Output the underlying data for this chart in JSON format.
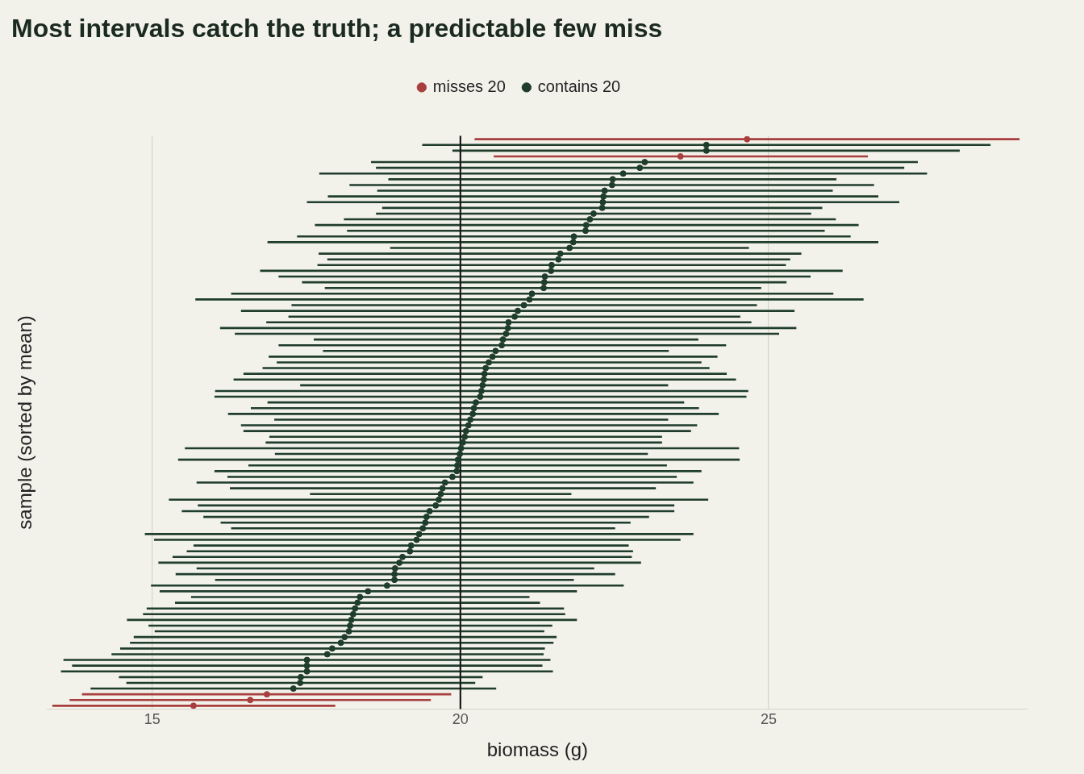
{
  "chart_data": {
    "type": "scatter",
    "orientation": "horizontal",
    "title": "Most intervals catch the truth; a predictable few miss",
    "xlabel": "biomass (g)",
    "ylabel": "sample (sorted by mean)",
    "categories": [
      null,
      null,
      null,
      null,
      null,
      null,
      null,
      null,
      null,
      null,
      null,
      null,
      null,
      null,
      null,
      null,
      null,
      null,
      null,
      null,
      null,
      null,
      null,
      null,
      null,
      null,
      null,
      null,
      null,
      null,
      null,
      null,
      null,
      null,
      null,
      null,
      null,
      null,
      null,
      null,
      null,
      null,
      null,
      null,
      null,
      null,
      null,
      null,
      null,
      null,
      null,
      null,
      null,
      null,
      null,
      null,
      null,
      null,
      null,
      null,
      null,
      null,
      null,
      null,
      null,
      null,
      null,
      null,
      null,
      null,
      null,
      null,
      null,
      null,
      null,
      null,
      null,
      null,
      null,
      null,
      null,
      null,
      null,
      null,
      null,
      null,
      null,
      null,
      null,
      null,
      null,
      null,
      null,
      null,
      null,
      null,
      null,
      null,
      null,
      null
    ],
    "xlim": [
      13.3,
      29.2
    ],
    "xticks": [
      15,
      20,
      25
    ],
    "grid": "x",
    "legend": "top",
    "tick_labels": "x",
    "marker": "circle",
    "ref_lines": [
      {
        "axis": "x",
        "value": 20,
        "color": "#1a1a1a"
      }
    ],
    "series": [
      {
        "name": "misses 20",
        "color": "#a83e3e",
        "values": [
          24.65,
          null,
          null,
          23.57,
          null,
          null,
          null,
          null,
          null,
          null,
          null,
          null,
          null,
          null,
          null,
          null,
          null,
          null,
          null,
          null,
          null,
          null,
          null,
          null,
          null,
          null,
          null,
          null,
          null,
          null,
          null,
          null,
          null,
          null,
          null,
          null,
          null,
          null,
          null,
          null,
          null,
          null,
          null,
          null,
          null,
          null,
          null,
          null,
          null,
          null,
          null,
          null,
          null,
          null,
          null,
          null,
          null,
          null,
          null,
          null,
          null,
          null,
          null,
          null,
          null,
          null,
          null,
          null,
          null,
          null,
          null,
          null,
          null,
          null,
          null,
          null,
          null,
          null,
          null,
          null,
          null,
          null,
          null,
          null,
          null,
          null,
          null,
          null,
          null,
          null,
          null,
          null,
          null,
          null,
          null,
          null,
          null,
          16.86,
          16.59,
          15.67
        ],
        "errors": [
          [
            20.23,
            29.07
          ],
          null,
          null,
          [
            20.54,
            26.61
          ],
          null,
          null,
          null,
          null,
          null,
          null,
          null,
          null,
          null,
          null,
          null,
          null,
          null,
          null,
          null,
          null,
          null,
          null,
          null,
          null,
          null,
          null,
          null,
          null,
          null,
          null,
          null,
          null,
          null,
          null,
          null,
          null,
          null,
          null,
          null,
          null,
          null,
          null,
          null,
          null,
          null,
          null,
          null,
          null,
          null,
          null,
          null,
          null,
          null,
          null,
          null,
          null,
          null,
          null,
          null,
          null,
          null,
          null,
          null,
          null,
          null,
          null,
          null,
          null,
          null,
          null,
          null,
          null,
          null,
          null,
          null,
          null,
          null,
          null,
          null,
          null,
          null,
          null,
          null,
          null,
          null,
          null,
          null,
          null,
          null,
          null,
          null,
          null,
          null,
          null,
          null,
          null,
          null,
          [
            13.86,
            19.85
          ],
          [
            13.66,
            19.52
          ],
          [
            13.38,
            17.97
          ]
        ]
      },
      {
        "name": "contains 20",
        "color": "#1f3d2b",
        "values": [
          null,
          23.99,
          23.99,
          null,
          22.99,
          22.91,
          22.64,
          22.47,
          22.46,
          22.34,
          22.32,
          22.31,
          22.3,
          22.16,
          22.1,
          22.04,
          22.03,
          21.84,
          21.83,
          21.77,
          21.62,
          21.59,
          21.48,
          21.47,
          21.37,
          21.36,
          21.35,
          21.16,
          21.12,
          21.03,
          20.93,
          20.88,
          20.78,
          20.77,
          20.74,
          20.69,
          20.67,
          20.57,
          20.52,
          20.46,
          20.41,
          20.39,
          20.38,
          20.36,
          20.34,
          20.32,
          20.25,
          20.22,
          20.2,
          20.16,
          20.13,
          20.09,
          20.07,
          20.04,
          20.01,
          19.99,
          19.96,
          19.95,
          19.94,
          19.87,
          19.75,
          19.71,
          19.68,
          19.65,
          19.6,
          19.5,
          19.45,
          19.43,
          19.39,
          19.33,
          19.29,
          19.2,
          19.18,
          19.06,
          19.01,
          18.94,
          18.93,
          18.93,
          18.81,
          18.5,
          18.37,
          18.33,
          18.29,
          18.26,
          18.23,
          18.21,
          18.19,
          18.12,
          18.06,
          17.92,
          17.84,
          17.51,
          17.51,
          17.51,
          17.41,
          17.4,
          17.29,
          null,
          null,
          null
        ],
        "errors": [
          null,
          [
            19.38,
            28.6
          ],
          [
            19.87,
            28.1
          ],
          null,
          [
            18.55,
            27.42
          ],
          [
            18.63,
            27.2
          ],
          [
            17.71,
            27.57
          ],
          [
            18.83,
            26.1
          ],
          [
            18.2,
            26.71
          ],
          [
            18.65,
            26.04
          ],
          [
            17.85,
            26.78
          ],
          [
            17.51,
            27.12
          ],
          [
            18.73,
            25.87
          ],
          [
            18.63,
            25.69
          ],
          [
            18.11,
            26.09
          ],
          [
            17.64,
            26.46
          ],
          [
            18.16,
            25.91
          ],
          [
            17.35,
            26.33
          ],
          [
            16.87,
            26.78
          ],
          [
            18.86,
            24.68
          ],
          [
            17.7,
            25.53
          ],
          [
            17.84,
            25.35
          ],
          [
            17.68,
            25.28
          ],
          [
            16.75,
            26.2
          ],
          [
            17.05,
            25.68
          ],
          [
            17.43,
            25.29
          ],
          [
            17.8,
            24.88
          ],
          [
            16.28,
            26.05
          ],
          [
            15.7,
            26.54
          ],
          [
            17.26,
            24.81
          ],
          [
            16.44,
            25.42
          ],
          [
            17.21,
            24.54
          ],
          [
            16.85,
            24.72
          ],
          [
            16.1,
            25.45
          ],
          [
            16.34,
            25.17
          ],
          [
            17.62,
            23.86
          ],
          [
            17.05,
            24.31
          ],
          [
            17.77,
            23.38
          ],
          [
            16.89,
            24.17
          ],
          [
            17.02,
            23.91
          ],
          [
            16.79,
            24.04
          ],
          [
            16.48,
            24.32
          ],
          [
            16.32,
            24.47
          ],
          [
            17.4,
            23.37
          ],
          [
            16.02,
            24.67
          ],
          [
            16.01,
            24.64
          ],
          [
            16.87,
            23.63
          ],
          [
            16.6,
            23.87
          ],
          [
            16.23,
            24.19
          ],
          [
            16.98,
            23.37
          ],
          [
            16.44,
            23.84
          ],
          [
            16.48,
            23.74
          ],
          [
            16.9,
            23.27
          ],
          [
            16.84,
            23.27
          ],
          [
            15.53,
            24.52
          ],
          [
            16.99,
            23.04
          ],
          [
            15.42,
            24.53
          ],
          [
            16.56,
            23.35
          ],
          [
            16.01,
            23.91
          ],
          [
            16.22,
            23.51
          ],
          [
            15.72,
            23.78
          ],
          [
            16.26,
            23.17
          ],
          [
            17.56,
            21.8
          ],
          [
            15.27,
            24.02
          ],
          [
            15.74,
            23.47
          ],
          [
            15.48,
            23.47
          ],
          [
            15.83,
            23.06
          ],
          [
            16.11,
            22.76
          ],
          [
            16.28,
            22.51
          ],
          [
            14.88,
            23.78
          ],
          [
            15.03,
            23.57
          ],
          [
            15.67,
            22.73
          ],
          [
            15.56,
            22.8
          ],
          [
            15.33,
            22.78
          ],
          [
            15.1,
            22.93
          ],
          [
            15.72,
            22.17
          ],
          [
            15.38,
            22.51
          ],
          [
            16.02,
            21.84
          ],
          [
            14.98,
            22.65
          ],
          [
            15.12,
            21.89
          ],
          [
            15.63,
            21.12
          ],
          [
            15.37,
            21.29
          ],
          [
            14.91,
            21.68
          ],
          [
            14.85,
            21.7
          ],
          [
            14.59,
            21.89
          ],
          [
            14.94,
            21.49
          ],
          [
            15.04,
            21.36
          ],
          [
            14.7,
            21.56
          ],
          [
            14.64,
            21.51
          ],
          [
            14.48,
            21.37
          ],
          [
            14.34,
            21.35
          ],
          [
            13.56,
            21.46
          ],
          [
            13.7,
            21.33
          ],
          [
            13.52,
            21.5
          ],
          [
            14.46,
            20.36
          ],
          [
            14.58,
            20.24
          ],
          [
            14.0,
            20.58
          ],
          null,
          null,
          null
        ]
      }
    ]
  }
}
